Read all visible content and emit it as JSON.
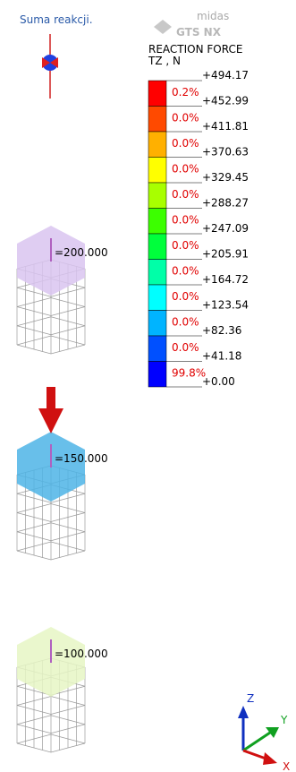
{
  "title": "Suma reakcji.",
  "logo": {
    "brand": "midas",
    "product": "GTS NX"
  },
  "legend": {
    "heading": "REACTION FORCE",
    "component": "TZ , N",
    "levels": [
      "+494.17",
      "+452.99",
      "+411.81",
      "+370.63",
      "+329.45",
      "+288.27",
      "+247.09",
      "+205.91",
      "+164.72",
      "+123.54",
      "+82.36",
      "+41.18",
      "+0.00"
    ],
    "percents": [
      "0.2%",
      "0.0%",
      "0.0%",
      "0.0%",
      "0.0%",
      "0.0%",
      "0.0%",
      "0.0%",
      "0.0%",
      "0.0%",
      "0.0%",
      "99.8%"
    ],
    "colors": [
      "#ff0000",
      "#ff4a00",
      "#ffb000",
      "#ffff00",
      "#a8ff00",
      "#3cff00",
      "#00ff3c",
      "#00ffa8",
      "#00ffff",
      "#00b4ff",
      "#0050ff",
      "#0000ff"
    ]
  },
  "model": {
    "labels": [
      "=200.000",
      "=150.000",
      "=100.000"
    ]
  },
  "axes": {
    "z": "Z",
    "y": "Y",
    "x": "X"
  }
}
